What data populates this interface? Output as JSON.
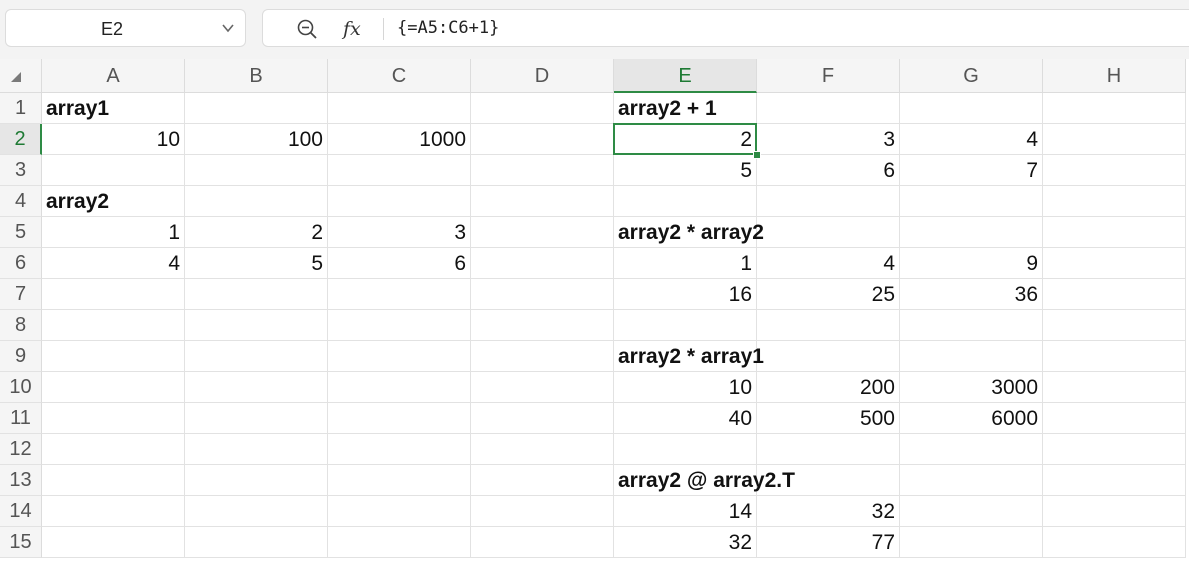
{
  "name_box": {
    "value": "E2"
  },
  "formula_bar": {
    "formula": "{=A5:C6+1}"
  },
  "columns": [
    "A",
    "B",
    "C",
    "D",
    "E",
    "F",
    "G",
    "H"
  ],
  "rows": [
    "1",
    "2",
    "3",
    "4",
    "5",
    "6",
    "7",
    "8",
    "9",
    "10",
    "11",
    "12",
    "13",
    "14",
    "15"
  ],
  "selected_cell": {
    "column": "E",
    "row": "2"
  },
  "cells": [
    {
      "col": "A",
      "row": 1,
      "value": "array1",
      "kind": "label"
    },
    {
      "col": "A",
      "row": 2,
      "value": "10",
      "kind": "num"
    },
    {
      "col": "B",
      "row": 2,
      "value": "100",
      "kind": "num"
    },
    {
      "col": "C",
      "row": 2,
      "value": "1000",
      "kind": "num"
    },
    {
      "col": "A",
      "row": 4,
      "value": "array2",
      "kind": "label"
    },
    {
      "col": "A",
      "row": 5,
      "value": "1",
      "kind": "num"
    },
    {
      "col": "B",
      "row": 5,
      "value": "2",
      "kind": "num"
    },
    {
      "col": "C",
      "row": 5,
      "value": "3",
      "kind": "num"
    },
    {
      "col": "A",
      "row": 6,
      "value": "4",
      "kind": "num"
    },
    {
      "col": "B",
      "row": 6,
      "value": "5",
      "kind": "num"
    },
    {
      "col": "C",
      "row": 6,
      "value": "6",
      "kind": "num"
    },
    {
      "col": "E",
      "row": 1,
      "value": "array2 + 1",
      "kind": "label"
    },
    {
      "col": "E",
      "row": 2,
      "value": "2",
      "kind": "num"
    },
    {
      "col": "F",
      "row": 2,
      "value": "3",
      "kind": "num"
    },
    {
      "col": "G",
      "row": 2,
      "value": "4",
      "kind": "num"
    },
    {
      "col": "E",
      "row": 3,
      "value": "5",
      "kind": "num"
    },
    {
      "col": "F",
      "row": 3,
      "value": "6",
      "kind": "num"
    },
    {
      "col": "G",
      "row": 3,
      "value": "7",
      "kind": "num"
    },
    {
      "col": "E",
      "row": 5,
      "value": "array2 * array2",
      "kind": "label"
    },
    {
      "col": "E",
      "row": 6,
      "value": "1",
      "kind": "num"
    },
    {
      "col": "F",
      "row": 6,
      "value": "4",
      "kind": "num"
    },
    {
      "col": "G",
      "row": 6,
      "value": "9",
      "kind": "num"
    },
    {
      "col": "E",
      "row": 7,
      "value": "16",
      "kind": "num"
    },
    {
      "col": "F",
      "row": 7,
      "value": "25",
      "kind": "num"
    },
    {
      "col": "G",
      "row": 7,
      "value": "36",
      "kind": "num"
    },
    {
      "col": "E",
      "row": 9,
      "value": "array2 * array1",
      "kind": "label"
    },
    {
      "col": "E",
      "row": 10,
      "value": "10",
      "kind": "num"
    },
    {
      "col": "F",
      "row": 10,
      "value": "200",
      "kind": "num"
    },
    {
      "col": "G",
      "row": 10,
      "value": "3000",
      "kind": "num"
    },
    {
      "col": "E",
      "row": 11,
      "value": "40",
      "kind": "num"
    },
    {
      "col": "F",
      "row": 11,
      "value": "500",
      "kind": "num"
    },
    {
      "col": "G",
      "row": 11,
      "value": "6000",
      "kind": "num"
    },
    {
      "col": "E",
      "row": 13,
      "value": "array2 @ array2.T",
      "kind": "label"
    },
    {
      "col": "E",
      "row": 14,
      "value": "14",
      "kind": "num"
    },
    {
      "col": "F",
      "row": 14,
      "value": "32",
      "kind": "num"
    },
    {
      "col": "E",
      "row": 15,
      "value": "32",
      "kind": "num"
    },
    {
      "col": "F",
      "row": 15,
      "value": "77",
      "kind": "num"
    }
  ]
}
